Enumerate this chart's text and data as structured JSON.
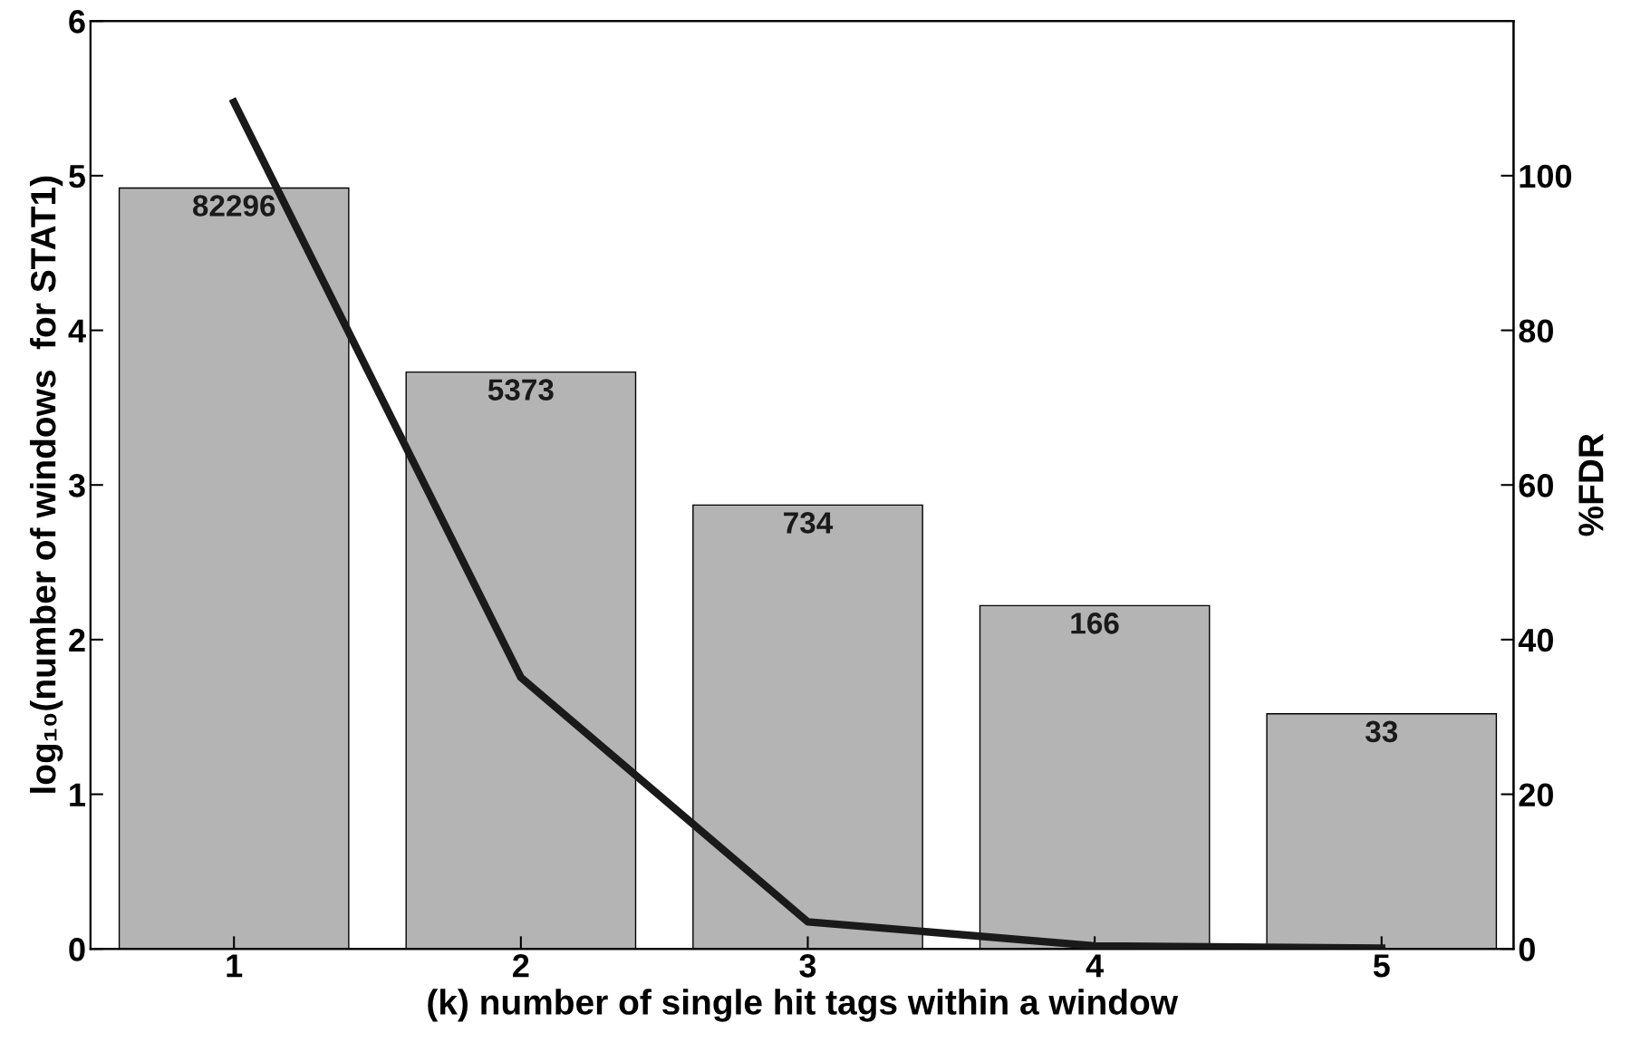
{
  "chart_data": {
    "type": "bar",
    "xlabel": "(k) number of single hit tags within a window",
    "ylabel": "log₁₀(number of windows  for STAT1)",
    "y2label": "%FDR",
    "categories": [
      "1",
      "2",
      "3",
      "4",
      "5"
    ],
    "series": [
      {
        "color": "#b4b4b4",
        "values": [
          4.92,
          3.73,
          2.87,
          2.22,
          1.52
        ]
      },
      {
        "type": "line",
        "axis": "y2",
        "color": "#1a1a1a",
        "values": [
          109.5,
          35.1,
          3.5,
          0.4,
          0.1
        ]
      }
    ],
    "annotations": [
      {
        "text": "82296",
        "x": "1",
        "y": 4.92
      },
      {
        "text": "5373",
        "x": "2",
        "y": 3.73
      },
      {
        "text": "734",
        "x": "3",
        "y": 2.87
      },
      {
        "text": "166",
        "x": "4",
        "y": 2.22
      },
      {
        "text": "33",
        "x": "5",
        "y": 1.52
      }
    ],
    "ylim": [
      0,
      6
    ],
    "yticks": [
      0,
      1,
      2,
      3,
      4,
      5,
      6
    ],
    "y2lim": [
      0,
      120
    ],
    "y2ticks": [
      0,
      20,
      40,
      60,
      80,
      100
    ],
    "grid": false,
    "legend": false,
    "marker": "none",
    "line_style": "solid"
  }
}
